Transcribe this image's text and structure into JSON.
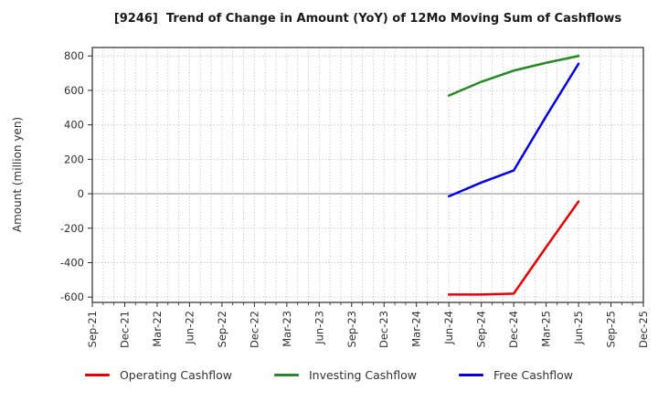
{
  "chart_data": {
    "type": "line",
    "title": "[9246]  Trend of Change in Amount (YoY) of 12Mo Moving Sum of Cashflows",
    "ylabel": "Amount (million yen)",
    "xlabel": "",
    "categories": [
      "Sep-21",
      "Dec-21",
      "Mar-22",
      "Jun-22",
      "Sep-22",
      "Dec-22",
      "Mar-23",
      "Jun-23",
      "Sep-23",
      "Dec-23",
      "Mar-24",
      "Jun-24",
      "Sep-24",
      "Dec-24",
      "Mar-25",
      "Jun-25",
      "Sep-25",
      "Dec-25"
    ],
    "yticks": [
      800,
      600,
      400,
      200,
      0,
      -200,
      -400,
      -600
    ],
    "ylim": [
      -631,
      849
    ],
    "grid": {
      "style": "dotted",
      "vertical": "monthly-minor",
      "zero_line": "solid"
    },
    "legend_position": "bottom",
    "series": [
      {
        "name": "Operating Cashflow",
        "color": "#ee0000",
        "x": [
          "Jun-24",
          "Sep-24",
          "Dec-24",
          "Mar-25",
          "Jun-25"
        ],
        "values": [
          -585,
          -585,
          -580,
          -310,
          -45
        ]
      },
      {
        "name": "Investing Cashflow",
        "color": "#228b22",
        "x": [
          "Jun-24",
          "Sep-24",
          "Dec-24",
          "Mar-25",
          "Jun-25"
        ],
        "values": [
          570,
          650,
          715,
          760,
          800
        ]
      },
      {
        "name": "Free Cashflow",
        "color": "#0000ee",
        "x": [
          "Jun-24",
          "Sep-24",
          "Dec-24",
          "Mar-25",
          "Jun-25"
        ],
        "values": [
          -15,
          65,
          135,
          450,
          755
        ]
      }
    ]
  }
}
